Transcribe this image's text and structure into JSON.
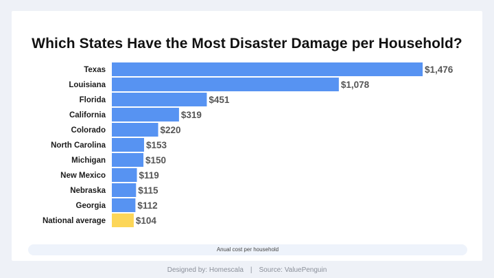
{
  "colors": {
    "bar": "#5793f2",
    "highlight": "#fcd658",
    "label": "#1a1a1a",
    "value": "#555555"
  },
  "chart_data": {
    "type": "bar",
    "orientation": "horizontal",
    "title": "Which States Have the Most Disaster Damage per Household?",
    "xlabel": "Anual cost per household",
    "ylabel": "",
    "xlim": [
      0,
      1476
    ],
    "grid": false,
    "categories": [
      "Texas",
      "Louisiana",
      "Florida",
      "California",
      "Colorado",
      "North Carolina",
      "Michigan",
      "New Mexico",
      "Nebraska",
      "Georgia",
      "National average"
    ],
    "values": [
      1476,
      1078,
      451,
      319,
      220,
      153,
      150,
      119,
      115,
      112,
      104
    ],
    "value_labels": [
      "$1,476",
      "$1,078",
      "$451",
      "$319",
      "$220",
      "$153",
      "$150",
      "$119",
      "$115",
      "$112",
      "$104"
    ],
    "highlight_category": "National average"
  },
  "footer": {
    "designed_by": "Designed by: Homescala",
    "separator": "|",
    "source": "Source: ValuePenguin"
  }
}
